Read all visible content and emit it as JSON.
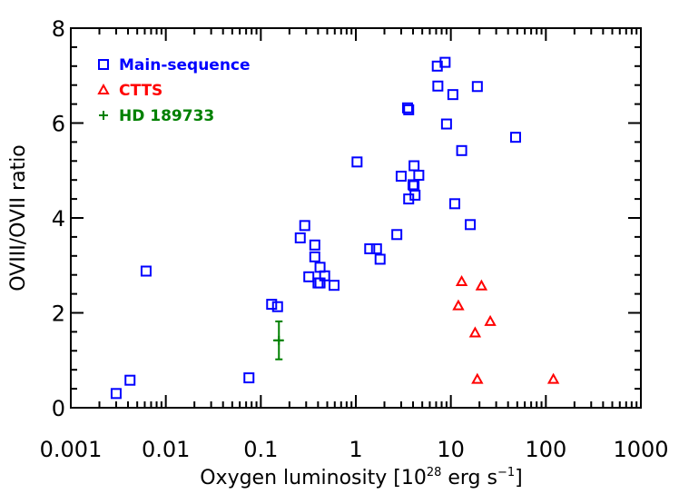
{
  "chart_data": {
    "type": "scatter",
    "title": "",
    "xlabel": "Oxygen luminosity [10",
    "xlabel_sup": "28",
    "xlabel_units": " erg s",
    "xlabel_units_sup": "−1",
    "xlabel_end": "]",
    "ylabel": "OVIII/OVII ratio",
    "xscale": "log",
    "xlim": [
      0.001,
      1000
    ],
    "ylim": [
      0,
      8
    ],
    "xticks": [
      0.001,
      0.01,
      0.1,
      1,
      10,
      100,
      1000
    ],
    "xtick_labels": [
      "0.001",
      "0.01",
      "0.1",
      "1",
      "10",
      "100",
      "1000"
    ],
    "yticks": [
      0,
      2,
      4,
      6,
      8
    ],
    "ytick_labels": [
      "0",
      "2",
      "4",
      "6",
      "8"
    ],
    "legend_position": "top-left",
    "series": [
      {
        "name": "Main-sequence",
        "marker": "square",
        "color": "#0000ff",
        "points": [
          [
            0.003,
            0.3
          ],
          [
            0.0042,
            0.58
          ],
          [
            0.0062,
            2.88
          ],
          [
            0.075,
            0.63
          ],
          [
            0.13,
            2.18
          ],
          [
            0.15,
            2.13
          ],
          [
            0.26,
            3.58
          ],
          [
            0.29,
            3.84
          ],
          [
            0.32,
            2.76
          ],
          [
            0.37,
            3.43
          ],
          [
            0.37,
            3.18
          ],
          [
            0.4,
            2.63
          ],
          [
            0.42,
            2.96
          ],
          [
            0.42,
            2.63
          ],
          [
            0.47,
            2.78
          ],
          [
            0.59,
            2.58
          ],
          [
            1.03,
            5.18
          ],
          [
            1.4,
            3.35
          ],
          [
            1.65,
            3.35
          ],
          [
            1.8,
            3.13
          ],
          [
            2.7,
            3.65
          ],
          [
            3.0,
            4.88
          ],
          [
            3.5,
            6.32
          ],
          [
            3.6,
            6.28
          ],
          [
            3.6,
            4.4
          ],
          [
            4.0,
            4.7
          ],
          [
            4.1,
            5.1
          ],
          [
            4.1,
            4.68
          ],
          [
            4.2,
            4.48
          ],
          [
            4.6,
            4.9
          ],
          [
            7.2,
            7.2
          ],
          [
            7.3,
            6.78
          ],
          [
            8.7,
            7.28
          ],
          [
            9.0,
            5.98
          ],
          [
            10.5,
            6.6
          ],
          [
            11.0,
            4.3
          ],
          [
            13.0,
            5.42
          ],
          [
            16.0,
            3.86
          ],
          [
            19.0,
            6.77
          ],
          [
            48.0,
            5.7
          ]
        ]
      },
      {
        "name": "CTTS",
        "marker": "triangle",
        "color": "#ff0000",
        "points": [
          [
            12.0,
            2.15
          ],
          [
            13.0,
            2.66
          ],
          [
            18.0,
            1.58
          ],
          [
            19.0,
            0.6
          ],
          [
            21.0,
            2.57
          ],
          [
            26.0,
            1.82
          ],
          [
            120.0,
            0.6
          ]
        ]
      },
      {
        "name": "HD 189733",
        "marker": "plus",
        "color": "#008000",
        "points": [
          [
            0.155,
            1.42
          ]
        ],
        "y_error": [
          [
            0.4,
            0.4
          ]
        ],
        "x_error_log": [
          [
            0.02,
            0.02
          ]
        ]
      }
    ]
  }
}
